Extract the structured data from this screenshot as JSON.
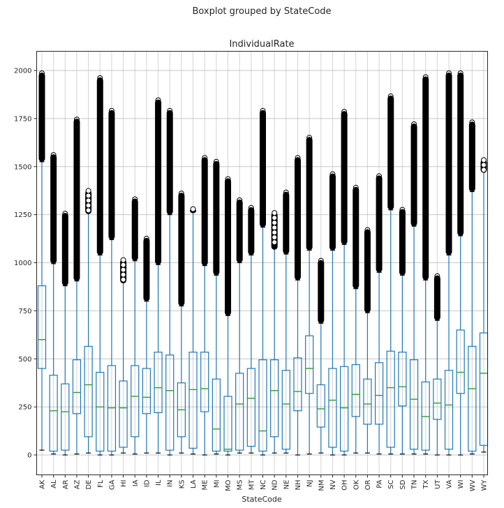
{
  "chart_data": {
    "type": "boxplot",
    "suptitle": "Boxplot grouped by StateCode",
    "title": "IndividualRate",
    "xlabel": "StateCode",
    "ylabel": "",
    "ylim": [
      -200,
      2100
    ],
    "yticks": [
      0,
      250,
      500,
      750,
      1000,
      1250,
      1500,
      1750,
      2000
    ],
    "grid": true,
    "colors": {
      "box": "#1f77b4",
      "median": "#2ca02c",
      "outlier": "#000000",
      "grid": "#b0b0b0"
    },
    "categories": [
      "AK",
      "AL",
      "AR",
      "AZ",
      "DE",
      "FL",
      "GA",
      "HI",
      "IA",
      "ID",
      "IL",
      "IN",
      "KS",
      "LA",
      "ME",
      "MI",
      "MO",
      "MS",
      "MT",
      "NC",
      "ND",
      "NE",
      "NH",
      "NJ",
      "NM",
      "NV",
      "OH",
      "OK",
      "OR",
      "PA",
      "SC",
      "SD",
      "TN",
      "TX",
      "UT",
      "VA",
      "WI",
      "WV",
      "WY"
    ],
    "boxes": [
      {
        "q1": 450,
        "median": 600,
        "q3": 880,
        "whislo": 25,
        "whishi": 1525,
        "flier_max": 2000
      },
      {
        "q1": 20,
        "median": 230,
        "q3": 415,
        "whislo": 5,
        "whishi": 995,
        "flier_max": 1575
      },
      {
        "q1": 25,
        "median": 225,
        "q3": 370,
        "whislo": 0,
        "whishi": 880,
        "flier_max": 1270
      },
      {
        "q1": 215,
        "median": 325,
        "q3": 495,
        "whislo": 5,
        "whishi": 905,
        "flier_max": 1760
      },
      {
        "q1": 95,
        "median": 365,
        "q3": 565,
        "whislo": 10,
        "whishi": 1260,
        "flier_max": 1385
      },
      {
        "q1": 20,
        "median": 250,
        "q3": 430,
        "whislo": 0,
        "whishi": 1040,
        "flier_max": 1975
      },
      {
        "q1": 20,
        "median": 245,
        "q3": 465,
        "whislo": 0,
        "whishi": 1120,
        "flier_max": 1805
      },
      {
        "q1": 40,
        "median": 245,
        "q3": 385,
        "whislo": 10,
        "whishi": 900,
        "flier_max": 1025
      },
      {
        "q1": 95,
        "median": 305,
        "q3": 465,
        "whislo": 5,
        "whishi": 1010,
        "flier_max": 1345
      },
      {
        "q1": 215,
        "median": 300,
        "q3": 450,
        "whislo": 10,
        "whishi": 800,
        "flier_max": 1140
      },
      {
        "q1": 220,
        "median": 350,
        "q3": 535,
        "whislo": 10,
        "whishi": 990,
        "flier_max": 1860
      },
      {
        "q1": 25,
        "median": 335,
        "q3": 520,
        "whislo": 0,
        "whishi": 1250,
        "flier_max": 1805
      },
      {
        "q1": 95,
        "median": 235,
        "q3": 375,
        "whislo": 10,
        "whishi": 775,
        "flier_max": 1375
      },
      {
        "q1": 35,
        "median": 340,
        "q3": 535,
        "whislo": 5,
        "whishi": 1265,
        "flier_max": 1290
      },
      {
        "q1": 225,
        "median": 345,
        "q3": 535,
        "whislo": 0,
        "whishi": 985,
        "flier_max": 1560
      },
      {
        "q1": 20,
        "median": 135,
        "q3": 395,
        "whislo": 5,
        "whishi": 935,
        "flier_max": 1540
      },
      {
        "q1": 20,
        "median": 30,
        "q3": 305,
        "whislo": 0,
        "whishi": 725,
        "flier_max": 1450
      },
      {
        "q1": 25,
        "median": 265,
        "q3": 425,
        "whislo": 10,
        "whishi": 1000,
        "flier_max": 1340
      },
      {
        "q1": 45,
        "median": 295,
        "q3": 450,
        "whislo": 10,
        "whishi": 1040,
        "flier_max": 1300
      },
      {
        "q1": 20,
        "median": 125,
        "q3": 495,
        "whislo": 0,
        "whishi": 1185,
        "flier_max": 1805
      },
      {
        "q1": 95,
        "median": 335,
        "q3": 495,
        "whislo": 10,
        "whishi": 1075,
        "flier_max": 1270
      },
      {
        "q1": 30,
        "median": 265,
        "q3": 440,
        "whislo": 10,
        "whishi": 1045,
        "flier_max": 1380
      },
      {
        "q1": 230,
        "median": 330,
        "q3": 505,
        "whislo": 0,
        "whishi": 910,
        "flier_max": 1560
      },
      {
        "q1": 320,
        "median": 450,
        "q3": 620,
        "whislo": 5,
        "whishi": 1065,
        "flier_max": 1665
      },
      {
        "q1": 145,
        "median": 240,
        "q3": 365,
        "whislo": 10,
        "whishi": 685,
        "flier_max": 1025
      },
      {
        "q1": 40,
        "median": 285,
        "q3": 450,
        "whislo": 0,
        "whishi": 1065,
        "flier_max": 1475
      },
      {
        "q1": 20,
        "median": 245,
        "q3": 460,
        "whislo": 0,
        "whishi": 1095,
        "flier_max": 1800
      },
      {
        "q1": 200,
        "median": 315,
        "q3": 470,
        "whislo": 10,
        "whishi": 865,
        "flier_max": 1405
      },
      {
        "q1": 160,
        "median": 265,
        "q3": 395,
        "whislo": 10,
        "whishi": 740,
        "flier_max": 1185
      },
      {
        "q1": 160,
        "median": 310,
        "q3": 480,
        "whislo": 5,
        "whishi": 950,
        "flier_max": 1465
      },
      {
        "q1": 40,
        "median": 350,
        "q3": 540,
        "whislo": 5,
        "whishi": 1275,
        "flier_max": 1880
      },
      {
        "q1": 255,
        "median": 355,
        "q3": 535,
        "whislo": 5,
        "whishi": 935,
        "flier_max": 1290
      },
      {
        "q1": 30,
        "median": 290,
        "q3": 495,
        "whislo": 5,
        "whishi": 1190,
        "flier_max": 1735
      },
      {
        "q1": 25,
        "median": 200,
        "q3": 380,
        "whislo": 5,
        "whishi": 910,
        "flier_max": 1980
      },
      {
        "q1": 185,
        "median": 270,
        "q3": 395,
        "whislo": 0,
        "whishi": 700,
        "flier_max": 945
      },
      {
        "q1": 30,
        "median": 260,
        "q3": 440,
        "whislo": 0,
        "whishi": 1040,
        "flier_max": 2000
      },
      {
        "q1": 320,
        "median": 430,
        "q3": 650,
        "whislo": 0,
        "whishi": 1140,
        "flier_max": 2000
      },
      {
        "q1": 20,
        "median": 345,
        "q3": 565,
        "whislo": 5,
        "whishi": 1370,
        "flier_max": 1745
      },
      {
        "q1": 50,
        "median": 425,
        "q3": 635,
        "whislo": 15,
        "whishi": 1475,
        "flier_max": 1545
      }
    ]
  }
}
